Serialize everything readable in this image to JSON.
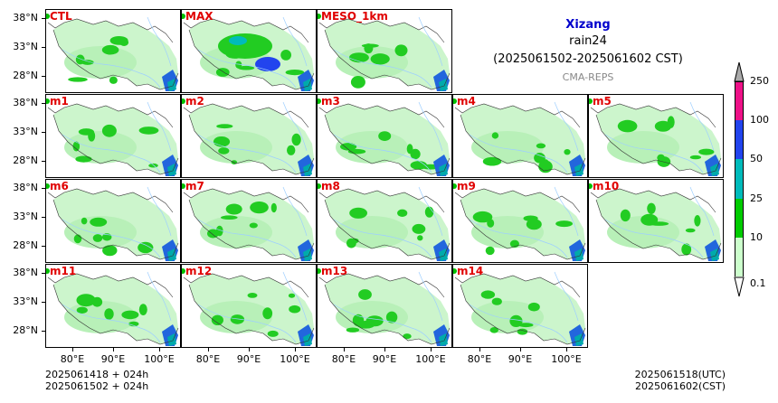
{
  "header": {
    "region": "Xizang",
    "variable": "rain24",
    "period": "(2025061502-2025061602 CST)",
    "model": "CMA-REPS"
  },
  "panels": [
    [
      "CTL",
      "MAX",
      "MESO_1km"
    ],
    [
      "m1",
      "m2",
      "m3",
      "m4",
      "m5"
    ],
    [
      "m6",
      "m7",
      "m8",
      "m9",
      "m10"
    ],
    [
      "m11",
      "m12",
      "m13",
      "m14"
    ]
  ],
  "axes": {
    "lat_labels": [
      "38°N",
      "33°N",
      "28°N"
    ],
    "lon_labels": [
      "80°E",
      "90°E",
      "100°E"
    ]
  },
  "colorbar": {
    "levels": [
      "0.1",
      "10",
      "25",
      "50",
      "100",
      "250"
    ],
    "colors": [
      "#ccffcc",
      "#00cc00",
      "#00bbbb",
      "#2244ee",
      "#ee1188",
      "#aaaaaa"
    ]
  },
  "footer": {
    "left_line1": "2025061418  +  024h",
    "left_line2": "2025061502  +  024h",
    "right_line1": "2025061518(UTC)",
    "right_line2": "2025061602(CST)"
  },
  "colors": {
    "title_blue": "#0000cc",
    "label_red": "#e00000",
    "light_green": "#ccf5cc",
    "mid_green": "#22cc22",
    "river_blue": "#9ecfff"
  }
}
